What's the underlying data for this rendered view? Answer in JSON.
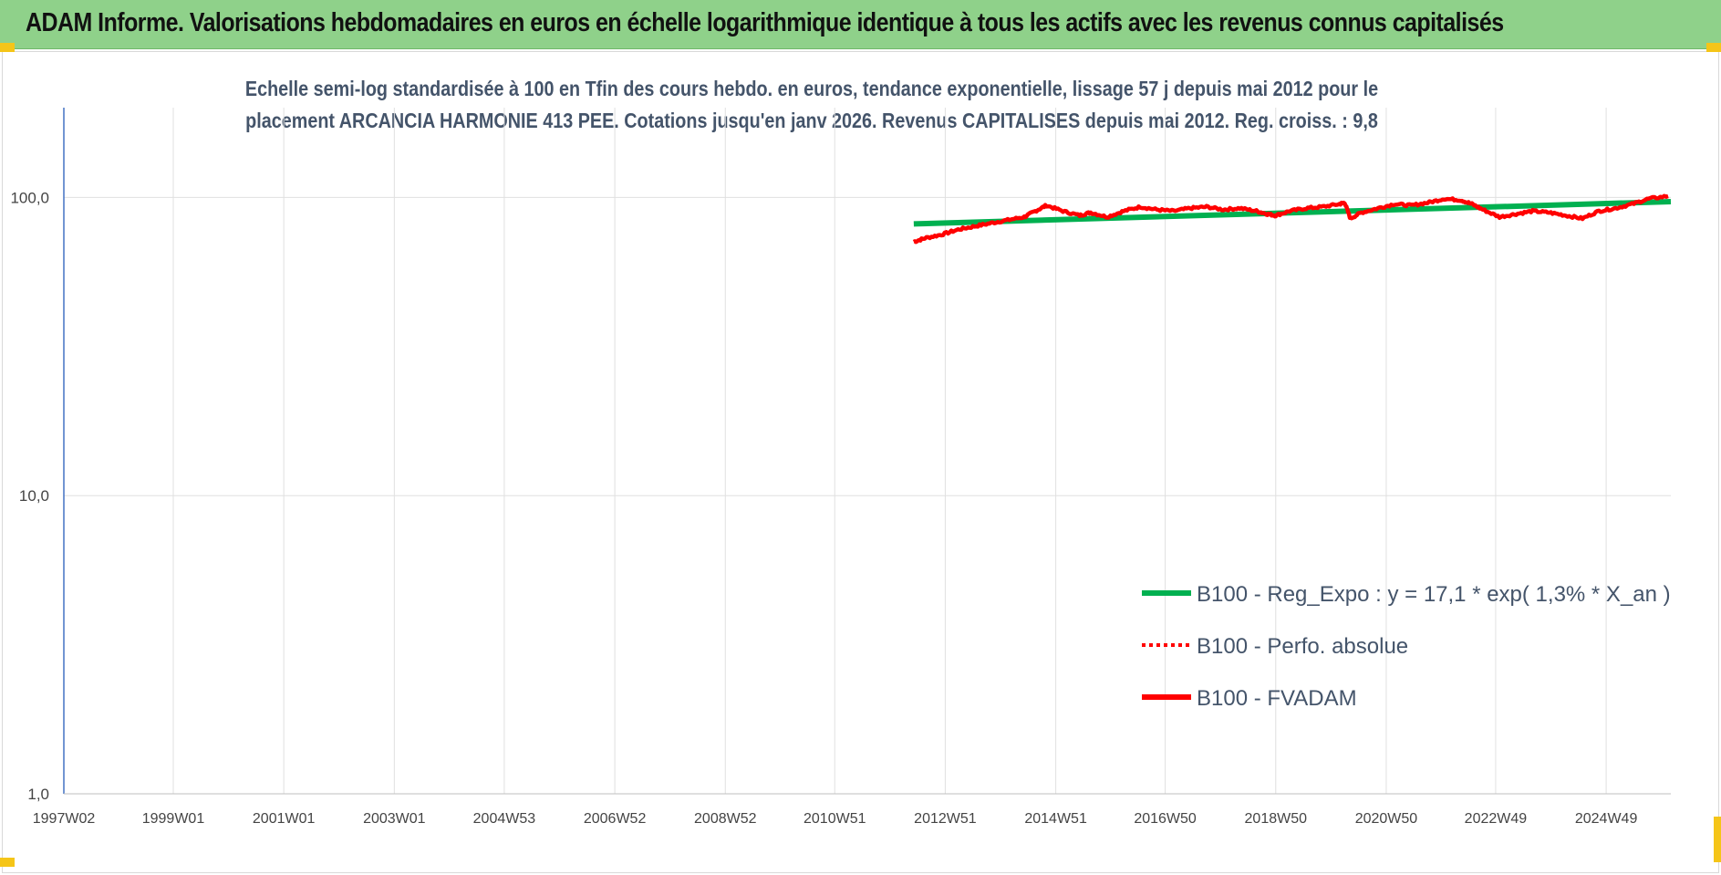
{
  "banner": {
    "title": "ADAM Informe. Valorisations hebdomadaires en euros en échelle logarithmique identique à tous les actifs avec les revenus connus capitalisés"
  },
  "colors": {
    "banner_bg": "#8fd18a",
    "subtitle": "#44546a",
    "regression": "#00b050",
    "fvadam": "#ff0000",
    "axis": "#4472c4",
    "grid": "#e0e0e0"
  },
  "chart_data": {
    "type": "line",
    "title_line1": "Echelle semi-log standardisée à 100 en Tfin des cours hebdo. en euros, tendance exponentielle, lissage 57 j depuis mai 2012 pour le",
    "title_line2": "placement ARCANCIA HARMONIE 413 PEE. Cotations jusqu'en janv 2026. Revenus CAPITALISES depuis mai 2012. Reg. croiss. : 9,8",
    "y_scale": "log",
    "ylim": [
      1,
      200
    ],
    "xlim": [
      1997.02,
      2026.1
    ],
    "y_ticks": [
      {
        "value": 1,
        "label": "1,0"
      },
      {
        "value": 10,
        "label": "10,0"
      },
      {
        "value": 100,
        "label": "100,0"
      }
    ],
    "x_ticks": [
      {
        "value": 1997.02,
        "label": "1997W02"
      },
      {
        "value": 1999.0,
        "label": "1999W01"
      },
      {
        "value": 2001.0,
        "label": "2001W01"
      },
      {
        "value": 2003.0,
        "label": "2003W01"
      },
      {
        "value": 2004.99,
        "label": "2004W53"
      },
      {
        "value": 2006.99,
        "label": "2006W52"
      },
      {
        "value": 2008.99,
        "label": "2008W52"
      },
      {
        "value": 2010.97,
        "label": "2010W51"
      },
      {
        "value": 2012.97,
        "label": "2012W51"
      },
      {
        "value": 2014.97,
        "label": "2014W51"
      },
      {
        "value": 2016.95,
        "label": "2016W50"
      },
      {
        "value": 2018.95,
        "label": "2018W50"
      },
      {
        "value": 2020.95,
        "label": "2020W50"
      },
      {
        "value": 2022.93,
        "label": "2022W49"
      },
      {
        "value": 2024.93,
        "label": "2024W49"
      }
    ],
    "grid": true,
    "legend_position": "right",
    "series": [
      {
        "name": "B100 - Reg_Expo : y = 17,1 * exp( 1,3% *  X_an )",
        "style": "solid",
        "x": [
          2012.4,
          2026.1
        ],
        "y": [
          81.5,
          96.8
        ]
      },
      {
        "name": "B100 - Perfo. absolue",
        "style": "dotted",
        "x": [
          2012.4,
          2012.6,
          2012.9,
          2013.2,
          2013.5,
          2013.8,
          2014.1,
          2014.4,
          2014.6,
          2014.8,
          2015.1,
          2015.4,
          2015.6,
          2015.9,
          2016.2,
          2016.5,
          2016.8,
          2017.1,
          2017.4,
          2017.7,
          2018.0,
          2018.3,
          2018.6,
          2018.8,
          2018.95,
          2019.2,
          2019.5,
          2019.8,
          2020.1,
          2020.2,
          2020.3,
          2020.5,
          2020.8,
          2021.1,
          2021.4,
          2021.7,
          2022.0,
          2022.3,
          2022.5,
          2022.7,
          2023.0,
          2023.3,
          2023.6,
          2023.9,
          2024.2,
          2024.5,
          2024.8,
          2025.1,
          2025.4,
          2025.7,
          2026.05
        ],
        "y": [
          71,
          73,
          75,
          78,
          80,
          82,
          84,
          86,
          90,
          94,
          90,
          87,
          89,
          86,
          90,
          93,
          91,
          90,
          92,
          93,
          91,
          92,
          90,
          88,
          87,
          90,
          92,
          93,
          95,
          96,
          85,
          89,
          92,
          95,
          94,
          96,
          99,
          98,
          95,
          91,
          86,
          88,
          90,
          89,
          87,
          85,
          90,
          92,
          95,
          99,
          101
        ]
      },
      {
        "name": "B100 - FVADAM",
        "style": "solid",
        "x": [
          2012.4,
          2012.6,
          2012.9,
          2013.2,
          2013.5,
          2013.8,
          2014.1,
          2014.4,
          2014.6,
          2014.8,
          2015.1,
          2015.4,
          2015.6,
          2015.9,
          2016.2,
          2016.5,
          2016.8,
          2017.1,
          2017.4,
          2017.7,
          2018.0,
          2018.3,
          2018.6,
          2018.8,
          2018.95,
          2019.2,
          2019.5,
          2019.8,
          2020.1,
          2020.2,
          2020.3,
          2020.5,
          2020.8,
          2021.1,
          2021.4,
          2021.7,
          2022.0,
          2022.3,
          2022.5,
          2022.7,
          2023.0,
          2023.3,
          2023.6,
          2023.9,
          2024.2,
          2024.5,
          2024.8,
          2025.1,
          2025.4,
          2025.7,
          2026.05
        ],
        "y": [
          71,
          73,
          75,
          78,
          80,
          82,
          84,
          86,
          90,
          94,
          90,
          87,
          89,
          86,
          90,
          93,
          91,
          90,
          92,
          93,
          91,
          92,
          90,
          88,
          87,
          90,
          92,
          93,
          95,
          96,
          85,
          89,
          92,
          95,
          94,
          96,
          99,
          98,
          95,
          91,
          86,
          88,
          90,
          89,
          87,
          85,
          90,
          92,
          95,
          99,
          101
        ]
      }
    ]
  }
}
